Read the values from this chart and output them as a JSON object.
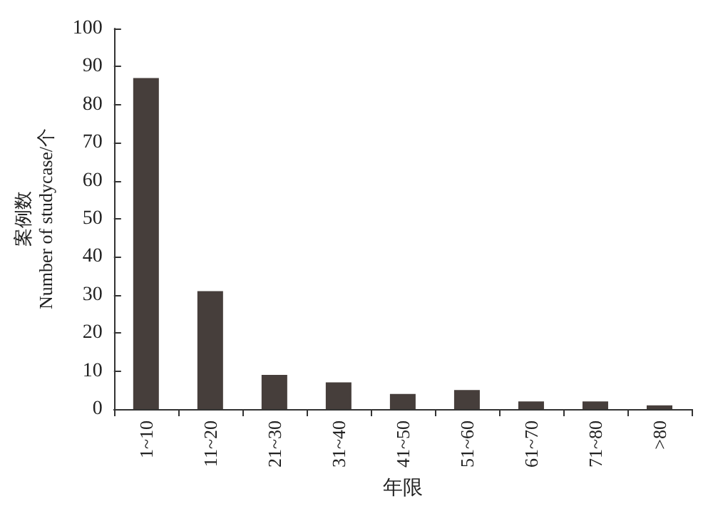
{
  "chart_data": {
    "type": "bar",
    "categories": [
      "1~10",
      "11~20",
      "21~30",
      "31~40",
      "41~50",
      "51~60",
      "61~70",
      "71~80",
      ">80"
    ],
    "values": [
      87,
      31,
      9,
      7,
      4,
      5,
      2,
      2,
      1
    ],
    "color": "#463e3b",
    "ylim": [
      0,
      100
    ],
    "yticks": [
      0,
      10,
      20,
      30,
      40,
      50,
      60,
      70,
      80,
      90,
      100
    ],
    "xlabel": "年限",
    "ylabel": "案例数\nNumber of studycase/个",
    "grid": false
  }
}
